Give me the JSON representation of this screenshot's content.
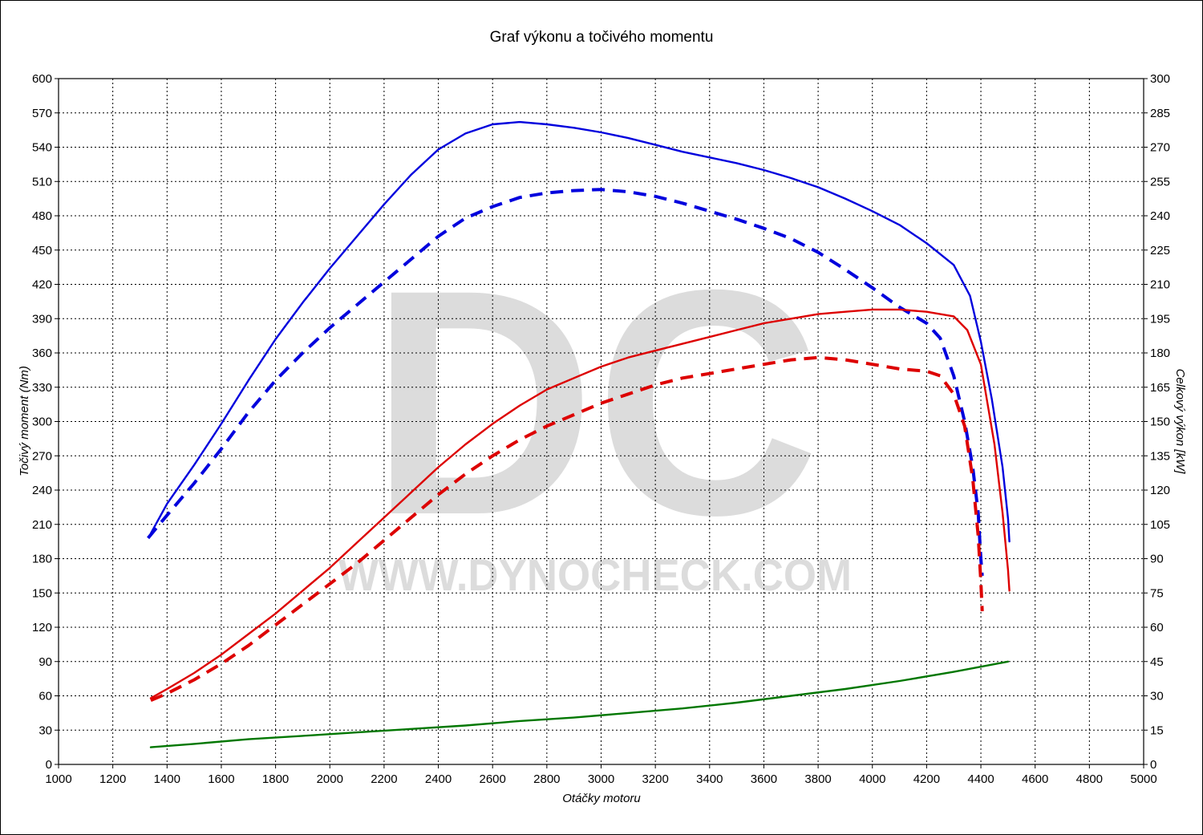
{
  "chart_data": {
    "type": "line",
    "title": "Graf výkonu a točivého momentu",
    "xlabel": "Otáčky motoru",
    "ylabel_left": "Točivý moment (Nm)",
    "ylabel_right": "Celkový výkon [kW]",
    "xlim": [
      1000,
      5000
    ],
    "ylim_left": [
      0,
      600
    ],
    "ylim_right": [
      0,
      300
    ],
    "x_ticks": [
      1000,
      1200,
      1400,
      1600,
      1800,
      2000,
      2200,
      2400,
      2600,
      2800,
      3000,
      3200,
      3400,
      3600,
      3800,
      4000,
      4200,
      4400,
      4600,
      4800,
      5000
    ],
    "y_ticks_left": [
      0,
      30,
      60,
      90,
      120,
      150,
      180,
      210,
      240,
      270,
      300,
      330,
      360,
      390,
      420,
      450,
      480,
      510,
      540,
      570,
      600
    ],
    "y_ticks_right": [
      0,
      15,
      30,
      45,
      60,
      75,
      90,
      105,
      120,
      135,
      150,
      165,
      180,
      195,
      210,
      225,
      240,
      255,
      270,
      285,
      300
    ],
    "grid": true,
    "watermark": {
      "letters": "DC",
      "url": "WWW.DYNOCHECK.COM"
    },
    "series": [
      {
        "axis": "left",
        "color": "#0000dd",
        "style": "solid",
        "points": [
          [
            1340,
            202
          ],
          [
            1400,
            228
          ],
          [
            1500,
            262
          ],
          [
            1600,
            298
          ],
          [
            1700,
            336
          ],
          [
            1800,
            372
          ],
          [
            1900,
            404
          ],
          [
            2000,
            434
          ],
          [
            2100,
            462
          ],
          [
            2200,
            490
          ],
          [
            2300,
            516
          ],
          [
            2400,
            538
          ],
          [
            2500,
            552
          ],
          [
            2600,
            560
          ],
          [
            2700,
            562
          ],
          [
            2800,
            560
          ],
          [
            2900,
            557
          ],
          [
            3000,
            553
          ],
          [
            3100,
            548
          ],
          [
            3200,
            542
          ],
          [
            3300,
            536
          ],
          [
            3400,
            531
          ],
          [
            3500,
            526
          ],
          [
            3600,
            520
          ],
          [
            3700,
            513
          ],
          [
            3800,
            505
          ],
          [
            3900,
            495
          ],
          [
            4000,
            484
          ],
          [
            4100,
            472
          ],
          [
            4200,
            456
          ],
          [
            4300,
            437
          ],
          [
            4360,
            410
          ],
          [
            4400,
            370
          ],
          [
            4440,
            320
          ],
          [
            4480,
            260
          ],
          [
            4500,
            215
          ],
          [
            4505,
            195
          ]
        ]
      },
      {
        "axis": "left",
        "color": "#0000dd",
        "style": "dashed",
        "points": [
          [
            1330,
            198
          ],
          [
            1400,
            218
          ],
          [
            1500,
            246
          ],
          [
            1600,
            276
          ],
          [
            1700,
            308
          ],
          [
            1800,
            336
          ],
          [
            1900,
            360
          ],
          [
            2000,
            382
          ],
          [
            2100,
            402
          ],
          [
            2200,
            422
          ],
          [
            2300,
            442
          ],
          [
            2400,
            462
          ],
          [
            2500,
            478
          ],
          [
            2600,
            488
          ],
          [
            2700,
            496
          ],
          [
            2800,
            500
          ],
          [
            2900,
            502
          ],
          [
            3000,
            503
          ],
          [
            3100,
            501
          ],
          [
            3200,
            497
          ],
          [
            3300,
            491
          ],
          [
            3400,
            484
          ],
          [
            3500,
            477
          ],
          [
            3600,
            469
          ],
          [
            3700,
            460
          ],
          [
            3800,
            448
          ],
          [
            3900,
            433
          ],
          [
            4000,
            417
          ],
          [
            4100,
            400
          ],
          [
            4200,
            386
          ],
          [
            4250,
            373
          ],
          [
            4300,
            340
          ],
          [
            4340,
            300
          ],
          [
            4370,
            260
          ],
          [
            4390,
            220
          ],
          [
            4400,
            180
          ],
          [
            4405,
            165
          ]
        ]
      },
      {
        "axis": "right",
        "color": "#dd0000",
        "style": "solid",
        "points": [
          [
            1340,
            29
          ],
          [
            1400,
            33
          ],
          [
            1500,
            40
          ],
          [
            1600,
            48
          ],
          [
            1700,
            57
          ],
          [
            1800,
            66
          ],
          [
            1900,
            76
          ],
          [
            2000,
            86
          ],
          [
            2100,
            97
          ],
          [
            2200,
            108
          ],
          [
            2300,
            119
          ],
          [
            2400,
            130
          ],
          [
            2500,
            140
          ],
          [
            2600,
            149
          ],
          [
            2700,
            157
          ],
          [
            2800,
            164
          ],
          [
            2900,
            169
          ],
          [
            3000,
            174
          ],
          [
            3100,
            178
          ],
          [
            3200,
            181
          ],
          [
            3300,
            184
          ],
          [
            3400,
            187
          ],
          [
            3500,
            190
          ],
          [
            3600,
            193
          ],
          [
            3700,
            195
          ],
          [
            3800,
            197
          ],
          [
            3900,
            198
          ],
          [
            4000,
            199
          ],
          [
            4100,
            199
          ],
          [
            4200,
            198
          ],
          [
            4300,
            196
          ],
          [
            4350,
            190
          ],
          [
            4400,
            175
          ],
          [
            4450,
            140
          ],
          [
            4480,
            110
          ],
          [
            4500,
            85
          ],
          [
            4505,
            76
          ]
        ]
      },
      {
        "axis": "right",
        "color": "#dd0000",
        "style": "dashed",
        "points": [
          [
            1340,
            28
          ],
          [
            1400,
            31
          ],
          [
            1500,
            37
          ],
          [
            1600,
            44
          ],
          [
            1700,
            52
          ],
          [
            1800,
            61
          ],
          [
            1900,
            70
          ],
          [
            2000,
            79
          ],
          [
            2100,
            88
          ],
          [
            2200,
            98
          ],
          [
            2300,
            108
          ],
          [
            2400,
            118
          ],
          [
            2500,
            127
          ],
          [
            2600,
            135
          ],
          [
            2700,
            142
          ],
          [
            2800,
            148
          ],
          [
            2900,
            153
          ],
          [
            3000,
            158
          ],
          [
            3100,
            162
          ],
          [
            3200,
            166
          ],
          [
            3300,
            169
          ],
          [
            3400,
            171
          ],
          [
            3500,
            173
          ],
          [
            3600,
            175
          ],
          [
            3700,
            177
          ],
          [
            3800,
            178
          ],
          [
            3900,
            177
          ],
          [
            4000,
            175
          ],
          [
            4100,
            173
          ],
          [
            4200,
            172
          ],
          [
            4250,
            170
          ],
          [
            4300,
            162
          ],
          [
            4340,
            148
          ],
          [
            4370,
            125
          ],
          [
            4390,
            100
          ],
          [
            4400,
            80
          ],
          [
            4405,
            67
          ]
        ]
      },
      {
        "axis": "left",
        "color": "#007700",
        "style": "solid",
        "points": [
          [
            1340,
            15
          ],
          [
            1500,
            18
          ],
          [
            1700,
            22
          ],
          [
            1900,
            25
          ],
          [
            2100,
            28
          ],
          [
            2300,
            31
          ],
          [
            2500,
            34
          ],
          [
            2700,
            38
          ],
          [
            2900,
            41
          ],
          [
            3100,
            45
          ],
          [
            3300,
            49
          ],
          [
            3500,
            54
          ],
          [
            3700,
            60
          ],
          [
            3900,
            66
          ],
          [
            4100,
            73
          ],
          [
            4300,
            81
          ],
          [
            4500,
            90
          ]
        ]
      }
    ]
  }
}
